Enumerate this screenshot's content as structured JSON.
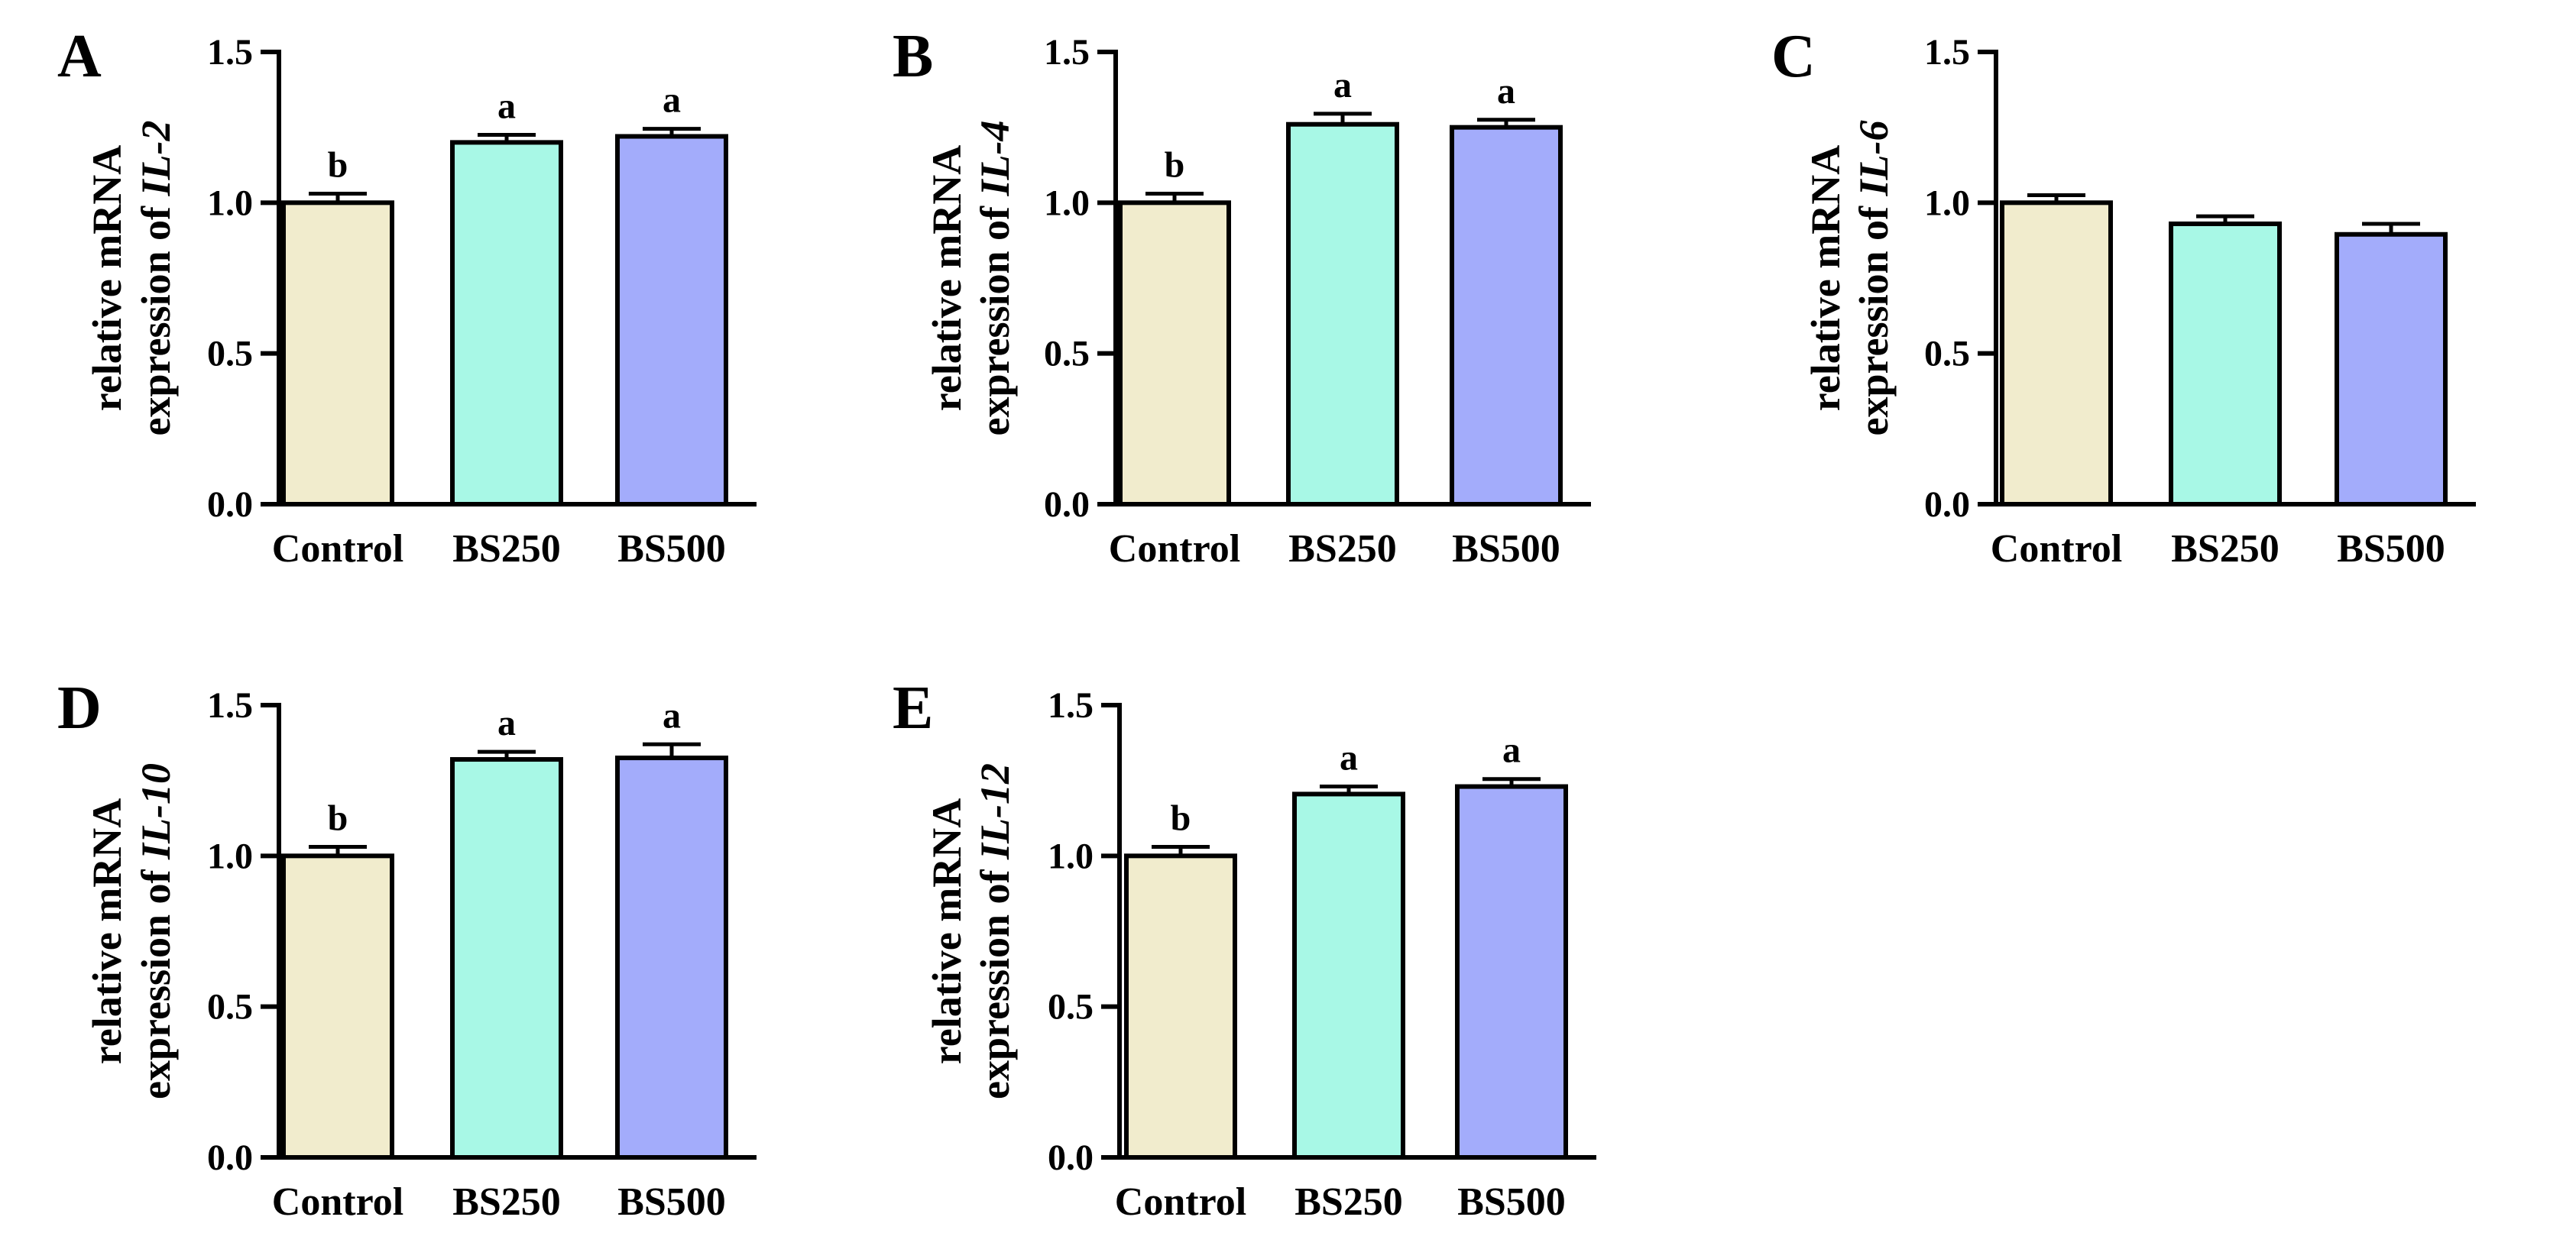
{
  "chart_data": [
    {
      "type": "bar",
      "panel": "A",
      "ylabel_line1": "relative mRNA",
      "ylabel_prefix": "expression of ",
      "ylabel_gene": "IL-2",
      "categories": [
        "Control",
        "BS250",
        "BS500"
      ],
      "values": [
        1.0,
        1.2,
        1.22
      ],
      "errors": [
        0.03,
        0.025,
        0.025
      ],
      "significance": [
        "b",
        "a",
        "a"
      ],
      "ylim": [
        0,
        1.5
      ],
      "yticks": [
        "0.0",
        "0.5",
        "1.0",
        "1.5"
      ]
    },
    {
      "type": "bar",
      "panel": "B",
      "ylabel_line1": "relative mRNA",
      "ylabel_prefix": "expression of ",
      "ylabel_gene": "IL-4",
      "categories": [
        "Control",
        "BS250",
        "BS500"
      ],
      "values": [
        1.0,
        1.26,
        1.25
      ],
      "errors": [
        0.03,
        0.035,
        0.025
      ],
      "significance": [
        "b",
        "a",
        "a"
      ],
      "ylim": [
        0,
        1.5
      ],
      "yticks": [
        "0.0",
        "0.5",
        "1.0",
        "1.5"
      ]
    },
    {
      "type": "bar",
      "panel": "C",
      "ylabel_line1": "relative mRNA",
      "ylabel_prefix": "expression of ",
      "ylabel_gene": "IL-6",
      "categories": [
        "Control",
        "BS250",
        "BS500"
      ],
      "values": [
        1.0,
        0.93,
        0.895
      ],
      "errors": [
        0.025,
        0.025,
        0.035
      ],
      "significance": [
        "",
        "",
        ""
      ],
      "ylim": [
        0,
        1.5
      ],
      "yticks": [
        "0.0",
        "0.5",
        "1.0",
        "1.5"
      ]
    },
    {
      "type": "bar",
      "panel": "D",
      "ylabel_line1": "relative mRNA",
      "ylabel_prefix": "expression of ",
      "ylabel_gene": "IL-10",
      "categories": [
        "Control",
        "BS250",
        "BS500"
      ],
      "values": [
        1.0,
        1.32,
        1.325
      ],
      "errors": [
        0.03,
        0.025,
        0.045
      ],
      "significance": [
        "b",
        "a",
        "a"
      ],
      "ylim": [
        0,
        1.5
      ],
      "yticks": [
        "0.0",
        "0.5",
        "1.0",
        "1.5"
      ]
    },
    {
      "type": "bar",
      "panel": "E",
      "ylabel_line1": "relative mRNA",
      "ylabel_prefix": "expression of ",
      "ylabel_gene": "IL-12",
      "categories": [
        "Control",
        "BS250",
        "BS500"
      ],
      "values": [
        1.0,
        1.205,
        1.23
      ],
      "errors": [
        0.03,
        0.025,
        0.025
      ],
      "significance": [
        "b",
        "a",
        "a"
      ],
      "ylim": [
        0,
        1.5
      ],
      "yticks": [
        "0.0",
        "0.5",
        "1.0",
        "1.5"
      ]
    }
  ],
  "colors": {
    "bars": [
      "#f1eccd",
      "#a8f8e6",
      "#a3acfb"
    ],
    "stroke": "#000000"
  }
}
